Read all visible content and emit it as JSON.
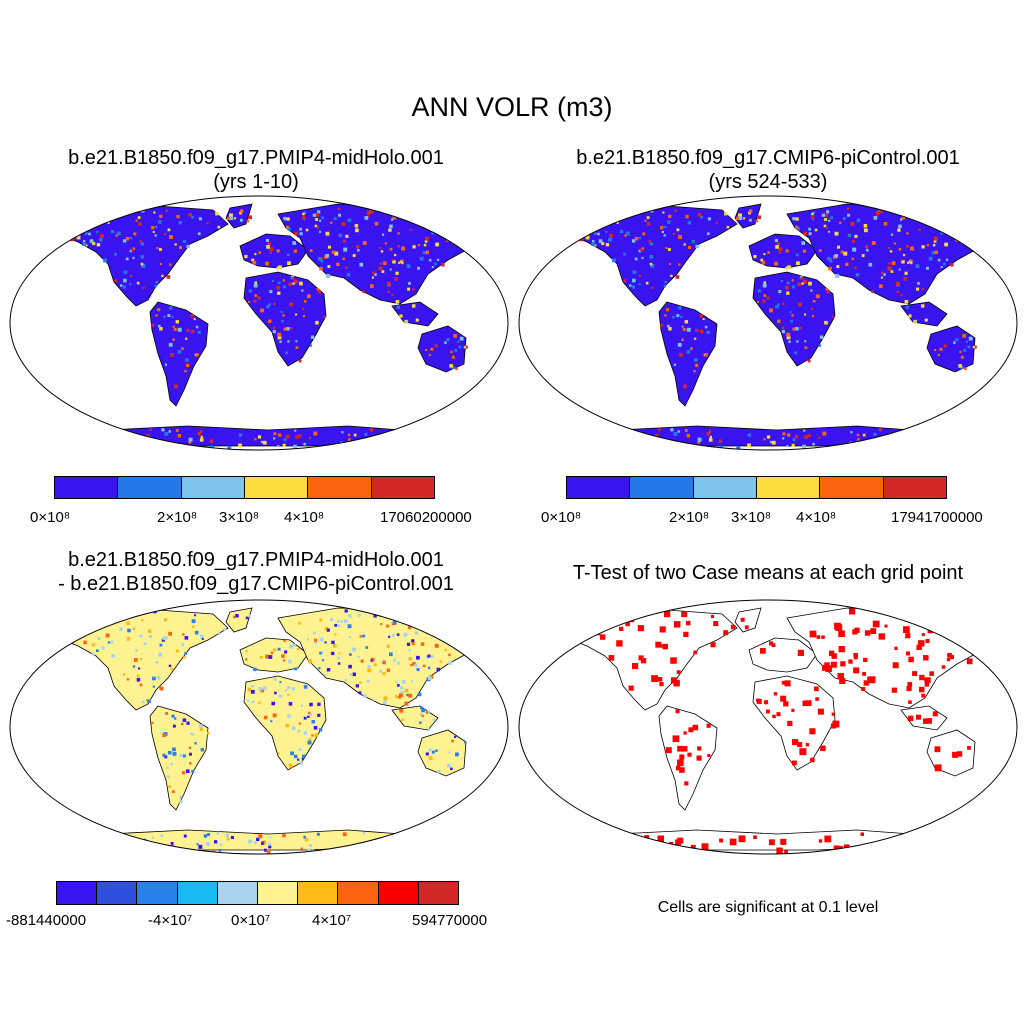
{
  "title": "ANN VOLR (m3)",
  "panels": [
    {
      "title_line1": "b.e21.B1850.f09_g17.PMIP4-midHolo.001",
      "title_line2": "(yrs 1-10)",
      "colorbar": {
        "colors": [
          "#3a14f0",
          "#2478e8",
          "#7cc4ea",
          "#fadd3c",
          "#fa6410",
          "#d42828"
        ],
        "ticks": [
          "0×10⁸",
          "2×10⁸",
          "3×10⁸",
          "4×10⁸",
          "17060200000"
        ]
      }
    },
    {
      "title_line1": "b.e21.B1850.f09_g17.CMIP6-piControl.001",
      "title_line2": "(yrs 524-533)",
      "colorbar": {
        "colors": [
          "#3a14f0",
          "#2478e8",
          "#7cc4ea",
          "#fadd3c",
          "#fa6410",
          "#d42828"
        ],
        "ticks": [
          "0×10⁸",
          "2×10⁸",
          "3×10⁸",
          "4×10⁸",
          "17941700000"
        ]
      }
    },
    {
      "title_line1": "b.e21.B1850.f09_g17.PMIP4-midHolo.001",
      "title_line2": "- b.e21.B1850.f09_g17.CMIP6-piControl.001",
      "colorbar": {
        "colors": [
          "#3a14f0",
          "#3050e0",
          "#2880ec",
          "#18b8f0",
          "#a8d4f0",
          "#fff290",
          "#fcba14",
          "#fa6410",
          "#fa0000",
          "#d42828"
        ],
        "ticks": [
          "-881440000",
          "-4×10⁷",
          "0×10⁷",
          "4×10⁷",
          "594770000"
        ]
      }
    },
    {
      "title_line1": "T-Test of two Case means at each grid point",
      "note": "Cells are significant at 0.1 level"
    }
  ]
}
